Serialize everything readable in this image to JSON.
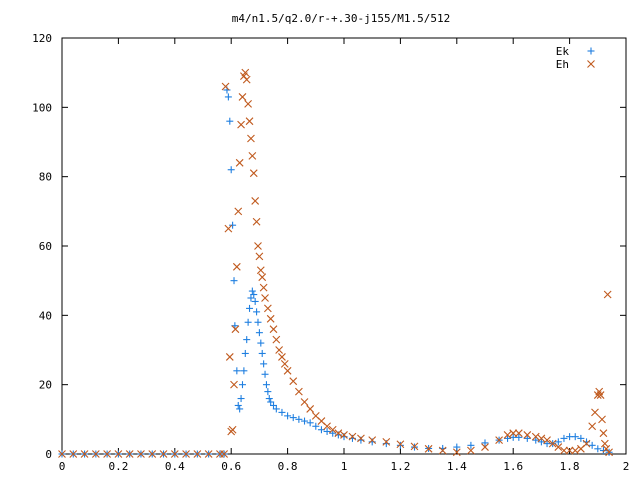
{
  "chart_data": {
    "type": "scatter",
    "title": "m4/n1.5/q2.0/r-+.30-j155/M1.5/512",
    "xlabel": "",
    "ylabel": "",
    "xlim": [
      0,
      2
    ],
    "ylim": [
      0,
      120
    ],
    "x_ticks": [
      "0",
      "0.2",
      "0.4",
      "0.6",
      "0.8",
      "1",
      "1.2",
      "1.4",
      "1.6",
      "1.8",
      "2"
    ],
    "y_ticks": [
      "0",
      "20",
      "40",
      "60",
      "80",
      "100",
      "120"
    ],
    "grid": false,
    "legend_position": "top-right",
    "series": [
      {
        "name": "Ek",
        "marker": "plus",
        "color": "#1f7fe0",
        "points": [
          [
            0.0,
            0
          ],
          [
            0.04,
            0
          ],
          [
            0.08,
            0
          ],
          [
            0.12,
            0
          ],
          [
            0.16,
            0
          ],
          [
            0.2,
            0
          ],
          [
            0.24,
            0
          ],
          [
            0.28,
            0
          ],
          [
            0.32,
            0
          ],
          [
            0.36,
            0
          ],
          [
            0.4,
            0
          ],
          [
            0.44,
            0
          ],
          [
            0.48,
            0
          ],
          [
            0.52,
            0
          ],
          [
            0.56,
            0
          ],
          [
            0.575,
            0
          ],
          [
            0.585,
            105
          ],
          [
            0.59,
            103
          ],
          [
            0.595,
            96
          ],
          [
            0.6,
            82
          ],
          [
            0.605,
            66
          ],
          [
            0.61,
            50
          ],
          [
            0.613,
            37
          ],
          [
            0.62,
            24
          ],
          [
            0.625,
            14
          ],
          [
            0.63,
            13
          ],
          [
            0.635,
            16
          ],
          [
            0.64,
            20
          ],
          [
            0.645,
            24
          ],
          [
            0.65,
            29
          ],
          [
            0.655,
            33
          ],
          [
            0.66,
            38
          ],
          [
            0.665,
            42
          ],
          [
            0.67,
            45
          ],
          [
            0.675,
            47
          ],
          [
            0.68,
            46
          ],
          [
            0.685,
            44
          ],
          [
            0.69,
            41
          ],
          [
            0.695,
            38
          ],
          [
            0.7,
            35
          ],
          [
            0.705,
            32
          ],
          [
            0.71,
            29
          ],
          [
            0.715,
            26
          ],
          [
            0.72,
            23
          ],
          [
            0.725,
            20
          ],
          [
            0.73,
            18
          ],
          [
            0.735,
            16
          ],
          [
            0.74,
            15
          ],
          [
            0.75,
            14
          ],
          [
            0.76,
            13
          ],
          [
            0.78,
            12
          ],
          [
            0.8,
            11
          ],
          [
            0.82,
            10.5
          ],
          [
            0.84,
            10
          ],
          [
            0.86,
            9.5
          ],
          [
            0.88,
            9
          ],
          [
            0.9,
            8
          ],
          [
            0.92,
            7
          ],
          [
            0.94,
            6.5
          ],
          [
            0.96,
            6
          ],
          [
            0.98,
            5.5
          ],
          [
            1.0,
            5
          ],
          [
            1.03,
            4.5
          ],
          [
            1.06,
            4
          ],
          [
            1.1,
            3.5
          ],
          [
            1.15,
            3
          ],
          [
            1.2,
            2.5
          ],
          [
            1.25,
            2
          ],
          [
            1.3,
            1.6
          ],
          [
            1.35,
            1.6
          ],
          [
            1.4,
            2
          ],
          [
            1.45,
            2.5
          ],
          [
            1.5,
            3.2
          ],
          [
            1.55,
            4
          ],
          [
            1.58,
            4.5
          ],
          [
            1.6,
            4.8
          ],
          [
            1.62,
            4.8
          ],
          [
            1.65,
            4.5
          ],
          [
            1.68,
            4
          ],
          [
            1.7,
            3.5
          ],
          [
            1.72,
            3
          ],
          [
            1.74,
            3
          ],
          [
            1.76,
            3.5
          ],
          [
            1.78,
            4.5
          ],
          [
            1.8,
            5
          ],
          [
            1.82,
            5
          ],
          [
            1.84,
            4.5
          ],
          [
            1.86,
            3.5
          ],
          [
            1.88,
            2.5
          ],
          [
            1.9,
            1.5
          ],
          [
            1.92,
            1
          ],
          [
            1.94,
            0.5
          ]
        ]
      },
      {
        "name": "Eh",
        "marker": "cross",
        "color": "#c05a1e",
        "points": [
          [
            0.0,
            0
          ],
          [
            0.04,
            0
          ],
          [
            0.08,
            0
          ],
          [
            0.12,
            0
          ],
          [
            0.16,
            0
          ],
          [
            0.2,
            0
          ],
          [
            0.24,
            0
          ],
          [
            0.28,
            0
          ],
          [
            0.32,
            0
          ],
          [
            0.36,
            0
          ],
          [
            0.4,
            0
          ],
          [
            0.44,
            0
          ],
          [
            0.48,
            0
          ],
          [
            0.52,
            0
          ],
          [
            0.56,
            0
          ],
          [
            0.575,
            0
          ],
          [
            0.58,
            106
          ],
          [
            0.59,
            65
          ],
          [
            0.595,
            28
          ],
          [
            0.6,
            6.5
          ],
          [
            0.605,
            7
          ],
          [
            0.61,
            20
          ],
          [
            0.615,
            36
          ],
          [
            0.62,
            54
          ],
          [
            0.625,
            70
          ],
          [
            0.63,
            84
          ],
          [
            0.635,
            95
          ],
          [
            0.64,
            103
          ],
          [
            0.645,
            109
          ],
          [
            0.65,
            110
          ],
          [
            0.655,
            108
          ],
          [
            0.66,
            101
          ],
          [
            0.665,
            96
          ],
          [
            0.67,
            91
          ],
          [
            0.675,
            86
          ],
          [
            0.68,
            81
          ],
          [
            0.685,
            73
          ],
          [
            0.69,
            67
          ],
          [
            0.695,
            60
          ],
          [
            0.7,
            57
          ],
          [
            0.705,
            53
          ],
          [
            0.71,
            51
          ],
          [
            0.715,
            48
          ],
          [
            0.72,
            45
          ],
          [
            0.73,
            42
          ],
          [
            0.74,
            39
          ],
          [
            0.75,
            36
          ],
          [
            0.76,
            33
          ],
          [
            0.77,
            30
          ],
          [
            0.78,
            28
          ],
          [
            0.79,
            26
          ],
          [
            0.8,
            24
          ],
          [
            0.82,
            21
          ],
          [
            0.84,
            18
          ],
          [
            0.86,
            15
          ],
          [
            0.88,
            13
          ],
          [
            0.9,
            11
          ],
          [
            0.92,
            9.5
          ],
          [
            0.94,
            8
          ],
          [
            0.96,
            7
          ],
          [
            0.98,
            6
          ],
          [
            1.0,
            5.5
          ],
          [
            1.03,
            5
          ],
          [
            1.06,
            4.5
          ],
          [
            1.1,
            4
          ],
          [
            1.15,
            3.5
          ],
          [
            1.2,
            2.8
          ],
          [
            1.25,
            2.2
          ],
          [
            1.3,
            1.5
          ],
          [
            1.35,
            1
          ],
          [
            1.4,
            0.5
          ],
          [
            1.45,
            1
          ],
          [
            1.5,
            2
          ],
          [
            1.55,
            4
          ],
          [
            1.58,
            5.5
          ],
          [
            1.6,
            6
          ],
          [
            1.62,
            6
          ],
          [
            1.65,
            5.5
          ],
          [
            1.68,
            5
          ],
          [
            1.7,
            4.5
          ],
          [
            1.72,
            4
          ],
          [
            1.74,
            3
          ],
          [
            1.76,
            2
          ],
          [
            1.78,
            1
          ],
          [
            1.8,
            1
          ],
          [
            1.82,
            1
          ],
          [
            1.84,
            1.5
          ],
          [
            1.86,
            3
          ],
          [
            1.88,
            8
          ],
          [
            1.89,
            12
          ],
          [
            1.9,
            17
          ],
          [
            1.905,
            18
          ],
          [
            1.91,
            17
          ],
          [
            1.915,
            10
          ],
          [
            1.92,
            6
          ],
          [
            1.925,
            3
          ],
          [
            1.93,
            1.5
          ],
          [
            1.935,
            46
          ],
          [
            1.94,
            0.5
          ]
        ]
      }
    ]
  }
}
